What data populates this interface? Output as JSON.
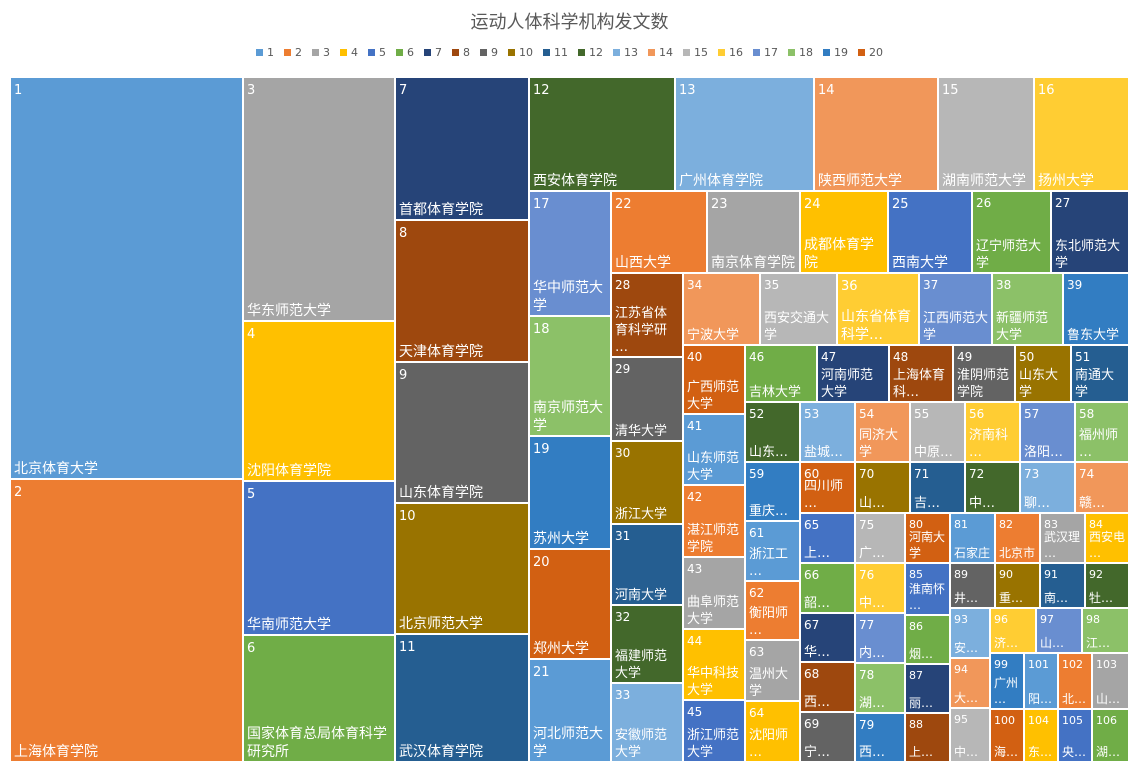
{
  "chart_data": {
    "type": "treemap",
    "title": "运动人体科学机构发文数",
    "legend": [
      "1",
      "2",
      "3",
      "4",
      "5",
      "6",
      "7",
      "8",
      "9",
      "10",
      "11",
      "12",
      "13",
      "14",
      "15",
      "16",
      "17",
      "18",
      "19",
      "20"
    ],
    "palette": [
      "#5B9BD5",
      "#ED7D31",
      "#A5A5A5",
      "#FFC000",
      "#4472C4",
      "#70AD47",
      "#264478",
      "#9E480E",
      "#636363",
      "#997300",
      "#255E91",
      "#43682B",
      "#7CAFDD",
      "#F1975A",
      "#B7B7B7",
      "#FFCD33",
      "#698ED0",
      "#8CC168",
      "#327DC2",
      "#D26012"
    ],
    "items": [
      {
        "id": "1",
        "name": "北京体育大学"
      },
      {
        "id": "2",
        "name": "上海体育学院"
      },
      {
        "id": "3",
        "name": "华东师范大学"
      },
      {
        "id": "4",
        "name": "沈阳体育学院"
      },
      {
        "id": "5",
        "name": "华南师范大学"
      },
      {
        "id": "6",
        "name": "国家体育总局体育科学研究所"
      },
      {
        "id": "7",
        "name": "首都体育学院"
      },
      {
        "id": "8",
        "name": "天津体育学院"
      },
      {
        "id": "9",
        "name": "山东体育学院"
      },
      {
        "id": "10",
        "name": "北京师范大学"
      },
      {
        "id": "11",
        "name": "武汉体育学院"
      },
      {
        "id": "12",
        "name": "西安体育学院"
      },
      {
        "id": "13",
        "name": "广州体育学院"
      },
      {
        "id": "14",
        "name": "陕西师范大学"
      },
      {
        "id": "15",
        "name": "湖南师范大学"
      },
      {
        "id": "16",
        "name": "扬州大学"
      },
      {
        "id": "17",
        "name": "华中师范大学"
      },
      {
        "id": "18",
        "name": "南京师范大学"
      },
      {
        "id": "19",
        "name": "苏州大学"
      },
      {
        "id": "20",
        "name": "郑州大学"
      },
      {
        "id": "21",
        "name": "河北师范大学"
      },
      {
        "id": "22",
        "name": "山西大学"
      },
      {
        "id": "23",
        "name": "南京体育学院"
      },
      {
        "id": "24",
        "name": "成都体育学院"
      },
      {
        "id": "25",
        "name": "西南大学"
      },
      {
        "id": "26",
        "name": "辽宁师范大学"
      },
      {
        "id": "27",
        "name": "东北师范大学"
      },
      {
        "id": "28",
        "name": "江苏省体育科学研…"
      },
      {
        "id": "29",
        "name": "清华大学"
      },
      {
        "id": "30",
        "name": "浙江大学"
      },
      {
        "id": "31",
        "name": "河南大学"
      },
      {
        "id": "32",
        "name": "福建师范大学"
      },
      {
        "id": "33",
        "name": "安徽师范大学"
      },
      {
        "id": "34",
        "name": "宁波大学"
      },
      {
        "id": "35",
        "name": "西安交通大学"
      },
      {
        "id": "36",
        "name": "山东省体育科学…"
      },
      {
        "id": "37",
        "name": "江西师范大学"
      },
      {
        "id": "38",
        "name": "新疆师范大学"
      },
      {
        "id": "39",
        "name": "鲁东大学"
      },
      {
        "id": "40",
        "name": "广西师范大学"
      },
      {
        "id": "41",
        "name": "山东师范大学"
      },
      {
        "id": "42",
        "name": "湛江师范学院"
      },
      {
        "id": "43",
        "name": "曲阜师范大学"
      },
      {
        "id": "44",
        "name": "华中科技大学"
      },
      {
        "id": "45",
        "name": "浙江师范大学"
      },
      {
        "id": "46",
        "name": "吉林大学"
      },
      {
        "id": "47",
        "name": "河南师范大学"
      },
      {
        "id": "48",
        "name": "上海体育科…"
      },
      {
        "id": "49",
        "name": "淮阴师范学院"
      },
      {
        "id": "50",
        "name": "山东大学"
      },
      {
        "id": "51",
        "name": "南通大学"
      },
      {
        "id": "52",
        "name": "山东…"
      },
      {
        "id": "53",
        "name": "盐城…"
      },
      {
        "id": "54",
        "name": "同济大学"
      },
      {
        "id": "55",
        "name": "中原…"
      },
      {
        "id": "56",
        "name": "济南科…"
      },
      {
        "id": "57",
        "name": "洛阳…"
      },
      {
        "id": "58",
        "name": "福州师…"
      },
      {
        "id": "59",
        "name": "重庆…"
      },
      {
        "id": "60",
        "name": "四川师…"
      },
      {
        "id": "61",
        "name": "浙江工…"
      },
      {
        "id": "62",
        "name": "衡阳师…"
      },
      {
        "id": "63",
        "name": "温州大学"
      },
      {
        "id": "64",
        "name": "沈阳师…"
      },
      {
        "id": "65",
        "name": "上…"
      },
      {
        "id": "66",
        "name": "韶…"
      },
      {
        "id": "67",
        "name": "华…"
      },
      {
        "id": "68",
        "name": "西…"
      },
      {
        "id": "69",
        "name": "宁…"
      },
      {
        "id": "70",
        "name": "山…"
      },
      {
        "id": "71",
        "name": "吉…"
      },
      {
        "id": "72",
        "name": "中…"
      },
      {
        "id": "73",
        "name": "聊…"
      },
      {
        "id": "74",
        "name": "赣…"
      },
      {
        "id": "75",
        "name": "广…"
      },
      {
        "id": "76",
        "name": "中…"
      },
      {
        "id": "77",
        "name": "内…"
      },
      {
        "id": "78",
        "name": "湖…"
      },
      {
        "id": "79",
        "name": "西…"
      },
      {
        "id": "80",
        "name": "河南大学"
      },
      {
        "id": "81",
        "name": "石家庄"
      },
      {
        "id": "82",
        "name": "北京市"
      },
      {
        "id": "83",
        "name": "武汉理…"
      },
      {
        "id": "84",
        "name": "西安电…"
      },
      {
        "id": "85",
        "name": "淮南怀…"
      },
      {
        "id": "86",
        "name": "烟…"
      },
      {
        "id": "87",
        "name": "丽…"
      },
      {
        "id": "88",
        "name": "上…"
      },
      {
        "id": "89",
        "name": "井…"
      },
      {
        "id": "90",
        "name": "重…"
      },
      {
        "id": "91",
        "name": "南…"
      },
      {
        "id": "92",
        "name": "牡…"
      },
      {
        "id": "93",
        "name": "安…"
      },
      {
        "id": "94",
        "name": "大…"
      },
      {
        "id": "95",
        "name": "中…"
      },
      {
        "id": "96",
        "name": "济…"
      },
      {
        "id": "97",
        "name": "山…"
      },
      {
        "id": "98",
        "name": "江…"
      },
      {
        "id": "99",
        "name": "广州…"
      },
      {
        "id": "100",
        "name": "海…"
      },
      {
        "id": "101",
        "name": "阳…"
      },
      {
        "id": "102",
        "name": "北…"
      },
      {
        "id": "103",
        "name": "山…"
      },
      {
        "id": "104",
        "name": "东…"
      },
      {
        "id": "105",
        "name": "央…"
      },
      {
        "id": "106",
        "name": "湖…"
      }
    ]
  }
}
